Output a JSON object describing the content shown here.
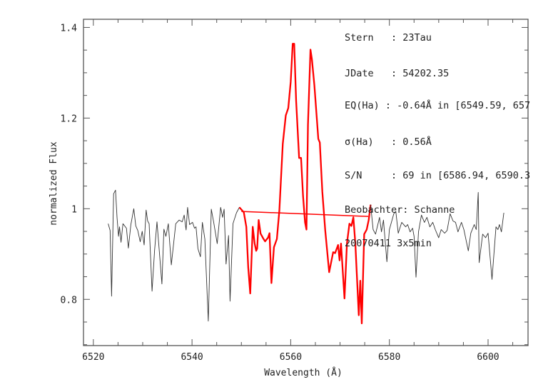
{
  "chart_data": {
    "type": "line",
    "title": "",
    "xlabel": "Wavelength (Å)",
    "ylabel": "normalized Flux",
    "xlim": [
      6518.0,
      6608.1
    ],
    "ylim": [
      0.698,
      1.418
    ],
    "x_ticks": [
      6520,
      6540,
      6560,
      6580,
      6600
    ],
    "x_tick_labels": [
      "6520",
      "6540",
      "6560",
      "6580",
      "6600"
    ],
    "x_minor_step": 5,
    "y_ticks": [
      0.8,
      1.0,
      1.2,
      1.4
    ],
    "y_tick_labels": [
      "0.8",
      "1",
      "1.2",
      "1.4"
    ],
    "y_minor_step": 0.05,
    "grid": false,
    "series": [
      {
        "color": "#333333",
        "x": [
          6523.0,
          6523.4,
          6523.7,
          6524.1,
          6524.5,
          6524.8,
          6525.1,
          6525.3,
          6525.6,
          6526.0,
          6526.7,
          6527.1,
          6527.6,
          6528.2,
          6528.6,
          6529.0,
          6529.5,
          6529.9,
          6530.3,
          6530.7,
          6531.0,
          6531.3,
          6531.9,
          6532.4,
          6532.9,
          6533.9,
          6534.3,
          6534.7,
          6535.2,
          6535.8,
          6536.7,
          6537.4,
          6538.0,
          6538.4,
          6538.8,
          6539.1,
          6539.5,
          6540.1,
          6540.5,
          6540.8,
          6541.2,
          6541.7,
          6542.1,
          6542.6,
          6543.3,
          6543.9,
          6544.4,
          6545.1,
          6545.8,
          6546.2,
          6546.5,
          6546.9,
          6547.4,
          6547.7,
          6548.3,
          6549.0,
          6549.6,
          6550.5
        ],
        "y": [
          0.967,
          0.952,
          0.807,
          1.033,
          1.041,
          0.981,
          0.939,
          0.96,
          0.926,
          0.967,
          0.957,
          0.913,
          0.965,
          1.0,
          0.962,
          0.952,
          0.927,
          0.95,
          0.92,
          0.997,
          0.973,
          0.967,
          0.818,
          0.907,
          0.971,
          0.834,
          0.955,
          0.939,
          0.967,
          0.876,
          0.967,
          0.975,
          0.971,
          0.986,
          0.953,
          1.003,
          0.965,
          0.97,
          0.957,
          0.96,
          0.912,
          0.894,
          0.97,
          0.933,
          0.752,
          0.999,
          0.97,
          0.923,
          1.003,
          0.981,
          0.999,
          0.878,
          0.941,
          0.796,
          0.967,
          0.991,
          1.003,
          0.992
        ]
      },
      {
        "color": "#ff0000",
        "x": [
          6549.6,
          6550.5,
          6551.0,
          6551.4,
          6551.8,
          6552.3,
          6552.7,
          6553.0,
          6553.2,
          6553.5,
          6553.9,
          6554.5,
          6554.8,
          6555.4,
          6555.7,
          6556.1,
          6556.6,
          6557.2,
          6557.7,
          6558.4,
          6559.0,
          6559.5,
          6560.0,
          6560.4,
          6560.7,
          6561.1,
          6561.7,
          6562.1,
          6562.5,
          6562.9,
          6563.2,
          6563.5,
          6564.0,
          6564.3,
          6564.8,
          6565.6,
          6565.9,
          6566.4,
          6567.0,
          6567.8,
          6568.6,
          6569.0,
          6569.6,
          6569.9,
          6570.2,
          6570.9,
          6571.4,
          6571.9,
          6572.3,
          6572.7,
          6573.1,
          6573.8,
          6574.1,
          6574.4,
          6574.9,
          6575.4,
          6575.8,
          6576.2
        ],
        "y": [
          1.003,
          0.992,
          0.96,
          0.87,
          0.813,
          0.96,
          0.923,
          0.907,
          0.912,
          0.975,
          0.945,
          0.933,
          0.928,
          0.936,
          0.946,
          0.836,
          0.915,
          0.933,
          0.996,
          1.143,
          1.206,
          1.222,
          1.28,
          1.364,
          1.364,
          1.238,
          1.112,
          1.112,
          1.028,
          0.97,
          0.954,
          1.185,
          1.351,
          1.33,
          1.272,
          1.154,
          1.146,
          1.038,
          0.952,
          0.86,
          0.904,
          0.902,
          0.92,
          0.886,
          0.923,
          0.802,
          0.923,
          0.967,
          0.962,
          0.981,
          0.923,
          0.765,
          0.841,
          0.747,
          0.944,
          0.954,
          0.975,
          1.009
        ]
      },
      {
        "color": "#333333",
        "x": [
          6576.2,
          6576.7,
          6577.2,
          6578.0,
          6578.4,
          6578.8,
          6579.5,
          6580.0,
          6580.9,
          6581.3,
          6581.8,
          6582.5,
          6583.3,
          6583.7,
          6584.2,
          6584.7,
          6585.0,
          6585.4,
          6585.9,
          6586.5,
          6587.1,
          6587.6,
          6588.2,
          6588.8,
          6589.3,
          6590.0,
          6590.5,
          6591.2,
          6591.7,
          6592.3,
          6592.9,
          6593.4,
          6593.9,
          6594.6,
          6595.1,
          6596.0,
          6596.5,
          6597.2,
          6597.6,
          6598.0,
          6598.2,
          6598.9,
          6599.5,
          6600.0,
          6600.8,
          6601.6,
          6602.0,
          6602.3,
          6602.7,
          6603.2
        ],
        "y": [
          1.009,
          0.954,
          0.944,
          0.981,
          0.949,
          0.975,
          0.883,
          0.954,
          0.989,
          0.994,
          0.946,
          0.97,
          0.96,
          0.965,
          0.949,
          0.957,
          0.939,
          0.849,
          0.949,
          0.986,
          0.97,
          0.981,
          0.96,
          0.97,
          0.954,
          0.936,
          0.954,
          0.946,
          0.952,
          0.989,
          0.973,
          0.97,
          0.949,
          0.97,
          0.954,
          0.907,
          0.946,
          0.965,
          0.954,
          1.036,
          0.881,
          0.944,
          0.936,
          0.946,
          0.844,
          0.96,
          0.954,
          0.965,
          0.949,
          0.991
        ]
      },
      {
        "color": "#ff0000",
        "x": [
          6550.0,
          6575.7
        ],
        "y": [
          0.994,
          0.983
        ]
      }
    ],
    "annotations": [
      "Stern   : 23Tau",
      "JDate   : 54202.35",
      "EQ(Ha) : -0.64Å in [6549.59, 657",
      "σ(Ha)   : 0.56Å",
      "S/N     : 69 in [6586.94, 6590.3",
      "Beobachter: Schanne",
      "20070411 3x5min"
    ]
  }
}
